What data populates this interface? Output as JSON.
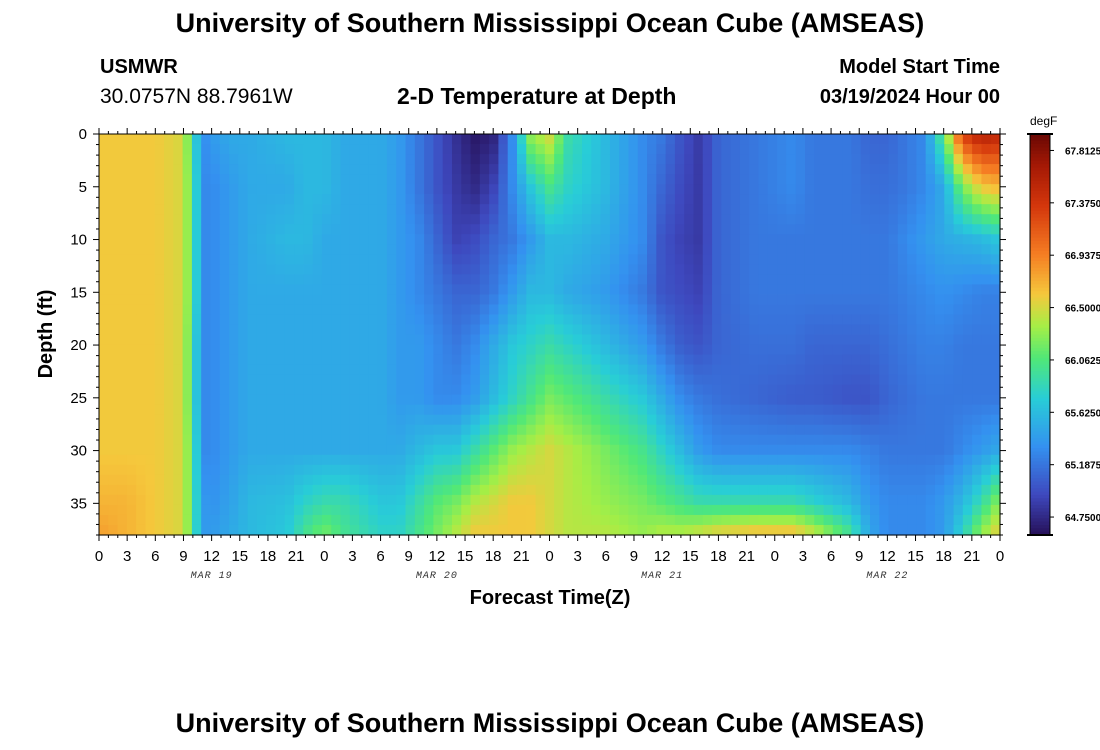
{
  "header": {
    "title": "University of Southern Mississippi Ocean Cube (AMSEAS)",
    "station": "USMWR",
    "coordinates": "30.0757N  88.7961W",
    "subtitle": "2-D Temperature at Depth",
    "model_start_label": "Model Start Time",
    "model_start_value": "03/19/2024 Hour 00"
  },
  "footer": {
    "title": "University of Southern Mississippi Ocean Cube (AMSEAS)"
  },
  "chart_data": {
    "type": "heatmap",
    "title": "2-D Temperature at Depth",
    "xlabel": "Forecast Time(Z)",
    "ylabel": "Depth (ft)",
    "x_range_hours": [
      0,
      96
    ],
    "y_range": [
      0,
      38
    ],
    "x_tick_labels": [
      "0",
      "3",
      "6",
      "9",
      "12",
      "15",
      "18",
      "21",
      "0",
      "3",
      "6",
      "9",
      "12",
      "15",
      "18",
      "21",
      "0",
      "3",
      "6",
      "9",
      "12",
      "15",
      "18",
      "21",
      "0",
      "3",
      "6",
      "9",
      "12",
      "15",
      "18",
      "21",
      "0"
    ],
    "date_labels": [
      {
        "label": "MAR 19",
        "hour": 12
      },
      {
        "label": "MAR 20",
        "hour": 36
      },
      {
        "label": "MAR 21",
        "hour": 60
      },
      {
        "label": "MAR 22",
        "hour": 84
      }
    ],
    "y_ticks": [
      0,
      5,
      10,
      15,
      20,
      25,
      30,
      35
    ],
    "colorbar": {
      "unit": "degF",
      "range": [
        64.6,
        67.95
      ],
      "tick_labels": [
        "67.8125",
        "67.3750",
        "66.9375",
        "66.5000",
        "66.0625",
        "65.6250",
        "65.1875",
        "64.7500"
      ],
      "tick_values": [
        67.8125,
        67.375,
        66.9375,
        66.5,
        66.0625,
        65.625,
        65.1875,
        64.75
      ]
    },
    "depths_ft": [
      0,
      5,
      10,
      15,
      20,
      25,
      30,
      35,
      38
    ],
    "hours": [
      0,
      3,
      6,
      9,
      10,
      11,
      12,
      14,
      16,
      20,
      22,
      24,
      26,
      30,
      32,
      34,
      36,
      38,
      40,
      42,
      44,
      46,
      48,
      50,
      54,
      58,
      60,
      62,
      64,
      66,
      70,
      74,
      76,
      80,
      82,
      84,
      86,
      88,
      90,
      92,
      94,
      96
    ],
    "temperature_degF": [
      [
        66.6,
        66.6,
        66.6,
        66.5,
        65.9,
        65.3,
        65.4,
        65.5,
        65.5,
        65.6,
        65.6,
        65.6,
        65.5,
        65.5,
        65.4,
        65.2,
        65.0,
        64.8,
        64.65,
        64.7,
        65.3,
        66.3,
        66.5,
        65.9,
        65.6,
        65.3,
        65.2,
        65.0,
        64.85,
        65.1,
        65.2,
        65.3,
        65.2,
        65.2,
        65.1,
        65.1,
        65.2,
        65.3,
        66.1,
        67.3,
        67.6,
        67.5
      ],
      [
        66.6,
        66.6,
        66.6,
        66.5,
        66.0,
        65.3,
        65.3,
        65.4,
        65.5,
        65.5,
        65.6,
        65.6,
        65.5,
        65.5,
        65.4,
        65.2,
        65.0,
        64.85,
        64.75,
        64.9,
        65.3,
        65.7,
        66.0,
        65.8,
        65.6,
        65.3,
        65.1,
        64.95,
        64.85,
        65.1,
        65.2,
        65.3,
        65.2,
        65.2,
        65.15,
        65.15,
        65.2,
        65.3,
        65.5,
        66.2,
        66.6,
        66.7
      ],
      [
        66.6,
        66.6,
        66.6,
        66.5,
        66.0,
        65.3,
        65.3,
        65.4,
        65.5,
        65.6,
        65.6,
        65.5,
        65.5,
        65.5,
        65.4,
        65.3,
        65.1,
        64.9,
        64.95,
        65.1,
        65.2,
        65.4,
        65.6,
        65.6,
        65.5,
        65.3,
        65.0,
        64.9,
        64.85,
        65.1,
        65.2,
        65.2,
        65.2,
        65.2,
        65.2,
        65.2,
        65.3,
        65.4,
        65.5,
        65.55,
        65.6,
        65.7
      ],
      [
        66.6,
        66.6,
        66.6,
        66.5,
        66.0,
        65.3,
        65.3,
        65.4,
        65.5,
        65.5,
        65.5,
        65.5,
        65.5,
        65.5,
        65.4,
        65.3,
        65.2,
        65.1,
        65.1,
        65.2,
        65.4,
        65.6,
        65.6,
        65.5,
        65.4,
        65.2,
        65.0,
        64.95,
        64.9,
        65.1,
        65.2,
        65.2,
        65.2,
        65.2,
        65.2,
        65.2,
        65.25,
        65.3,
        65.35,
        65.3,
        65.25,
        65.25
      ],
      [
        66.6,
        66.6,
        66.6,
        66.5,
        65.9,
        65.3,
        65.3,
        65.4,
        65.5,
        65.5,
        65.5,
        65.5,
        65.5,
        65.5,
        65.4,
        65.4,
        65.3,
        65.2,
        65.3,
        65.5,
        65.7,
        65.8,
        65.9,
        65.8,
        65.6,
        65.4,
        65.2,
        65.05,
        65.0,
        65.1,
        65.15,
        65.15,
        65.1,
        65.1,
        65.1,
        65.15,
        65.2,
        65.25,
        65.25,
        65.2,
        65.2,
        65.2
      ],
      [
        66.6,
        66.6,
        66.6,
        66.5,
        65.9,
        65.3,
        65.3,
        65.4,
        65.5,
        65.5,
        65.5,
        65.5,
        65.5,
        65.5,
        65.4,
        65.4,
        65.3,
        65.3,
        65.4,
        65.6,
        65.8,
        66.0,
        66.2,
        66.1,
        65.9,
        65.7,
        65.5,
        65.3,
        65.2,
        65.15,
        65.1,
        65.05,
        65.05,
        65.0,
        65.0,
        65.1,
        65.15,
        65.2,
        65.2,
        65.2,
        65.2,
        65.2
      ],
      [
        66.6,
        66.6,
        66.6,
        66.5,
        66.0,
        65.3,
        65.3,
        65.4,
        65.5,
        65.5,
        65.5,
        65.5,
        65.5,
        65.5,
        65.5,
        65.6,
        65.7,
        65.7,
        65.9,
        66.1,
        66.3,
        66.4,
        66.5,
        66.4,
        66.2,
        66.0,
        65.8,
        65.6,
        65.4,
        65.3,
        65.3,
        65.3,
        65.3,
        65.3,
        65.25,
        65.2,
        65.2,
        65.2,
        65.2,
        65.3,
        65.4,
        65.5
      ],
      [
        66.7,
        66.7,
        66.6,
        66.5,
        66.0,
        65.4,
        65.35,
        65.45,
        65.6,
        65.65,
        65.8,
        65.9,
        65.9,
        65.7,
        65.7,
        65.9,
        66.1,
        66.2,
        66.4,
        66.5,
        66.6,
        66.6,
        66.5,
        66.4,
        66.3,
        66.2,
        66.1,
        66.0,
        65.9,
        65.9,
        65.9,
        65.9,
        65.8,
        65.6,
        65.4,
        65.3,
        65.3,
        65.3,
        65.4,
        65.6,
        65.9,
        66.3
      ],
      [
        66.8,
        66.7,
        66.6,
        66.5,
        66.0,
        65.4,
        65.4,
        65.5,
        65.6,
        65.7,
        66.0,
        66.2,
        66.0,
        65.8,
        65.8,
        66.0,
        66.2,
        66.4,
        66.6,
        66.6,
        66.6,
        66.6,
        66.5,
        66.4,
        66.4,
        66.3,
        66.4,
        66.4,
        66.5,
        66.6,
        66.7,
        66.7,
        66.5,
        66.0,
        65.5,
        65.3,
        65.3,
        65.3,
        65.4,
        65.8,
        66.3,
        66.6
      ]
    ]
  }
}
